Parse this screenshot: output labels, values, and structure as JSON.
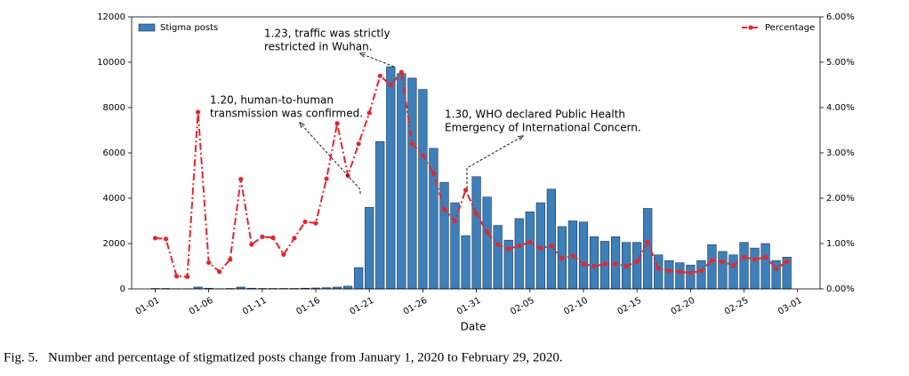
{
  "chart_data": {
    "type": "bar_line",
    "xlabel": "Date",
    "caption": "Fig. 5.   Number and percentage of stigmatized posts change from January 1, 2020 to February 29, 2020.",
    "xlim": [
      -2.2,
      62.1
    ],
    "xticks": [
      {
        "value": 0,
        "label": "01-01"
      },
      {
        "value": 5,
        "label": "01-06"
      },
      {
        "value": 10,
        "label": "01-11"
      },
      {
        "value": 15,
        "label": "01-16"
      },
      {
        "value": 20,
        "label": "01-21"
      },
      {
        "value": 25,
        "label": "01-26"
      },
      {
        "value": 30,
        "label": "01-31"
      },
      {
        "value": 35,
        "label": "02-05"
      },
      {
        "value": 40,
        "label": "02-10"
      },
      {
        "value": 45,
        "label": "02-15"
      },
      {
        "value": 50,
        "label": "02-20"
      },
      {
        "value": 55,
        "label": "02-25"
      },
      {
        "value": 60,
        "label": "03-01"
      }
    ],
    "ylim": [
      0,
      12000
    ],
    "yticks": [
      0,
      2000,
      4000,
      6000,
      8000,
      10000,
      12000
    ],
    "y2lim": [
      0,
      6
    ],
    "y2ticks": [
      {
        "value": 0,
        "label": "0.00%"
      },
      {
        "value": 1,
        "label": "1.00%"
      },
      {
        "value": 2,
        "label": "2.00%"
      },
      {
        "value": 3,
        "label": "3.00%"
      },
      {
        "value": 4,
        "label": "4.00%"
      },
      {
        "value": 5,
        "label": "5.00%"
      },
      {
        "value": 6,
        "label": "6.00%"
      }
    ],
    "series": [
      {
        "name": "Stigma posts",
        "type": "bar",
        "color": "#3d7fb9",
        "values": [
          20,
          20,
          10,
          10,
          80,
          30,
          10,
          20,
          80,
          30,
          20,
          20,
          20,
          20,
          30,
          40,
          50,
          80,
          120,
          940,
          3600,
          6500,
          9800,
          9500,
          9300,
          8800,
          6200,
          4700,
          3800,
          2350,
          4950,
          4050,
          2800,
          2150,
          3100,
          3400,
          3800,
          4400,
          2750,
          3000,
          2950,
          2300,
          2100,
          2300,
          2050,
          2050,
          3550,
          1500,
          1250,
          1150,
          1050,
          1250,
          1950,
          1650,
          1500,
          2050,
          1800,
          2000,
          1250,
          1400
        ]
      },
      {
        "name": "Percentage",
        "type": "line",
        "axis": "y2",
        "color": "#e3262b",
        "values": [
          1.12,
          1.1,
          0.28,
          0.27,
          3.9,
          0.58,
          0.38,
          0.65,
          2.42,
          0.98,
          1.15,
          1.13,
          0.76,
          1.12,
          1.48,
          1.45,
          2.43,
          3.65,
          2.5,
          3.2,
          3.88,
          4.7,
          4.5,
          4.78,
          3.2,
          2.95,
          2.55,
          1.75,
          1.5,
          2.18,
          1.65,
          1.25,
          0.98,
          0.88,
          0.95,
          1.03,
          0.9,
          0.95,
          0.67,
          0.73,
          0.55,
          0.5,
          0.55,
          0.55,
          0.5,
          0.6,
          1.03,
          0.45,
          0.4,
          0.38,
          0.35,
          0.4,
          0.63,
          0.6,
          0.52,
          0.7,
          0.65,
          0.7,
          0.45,
          0.6
        ]
      }
    ],
    "annotations": [
      {
        "text": [
          "1.20, human-to-human",
          "transmission was confirmed."
        ]
      },
      {
        "text": [
          "1.23, traffic was strictly",
          "restricted in Wuhan."
        ]
      },
      {
        "text": [
          "1.30, WHO declared Public Health",
          "Emergency of International Concern."
        ]
      }
    ]
  }
}
